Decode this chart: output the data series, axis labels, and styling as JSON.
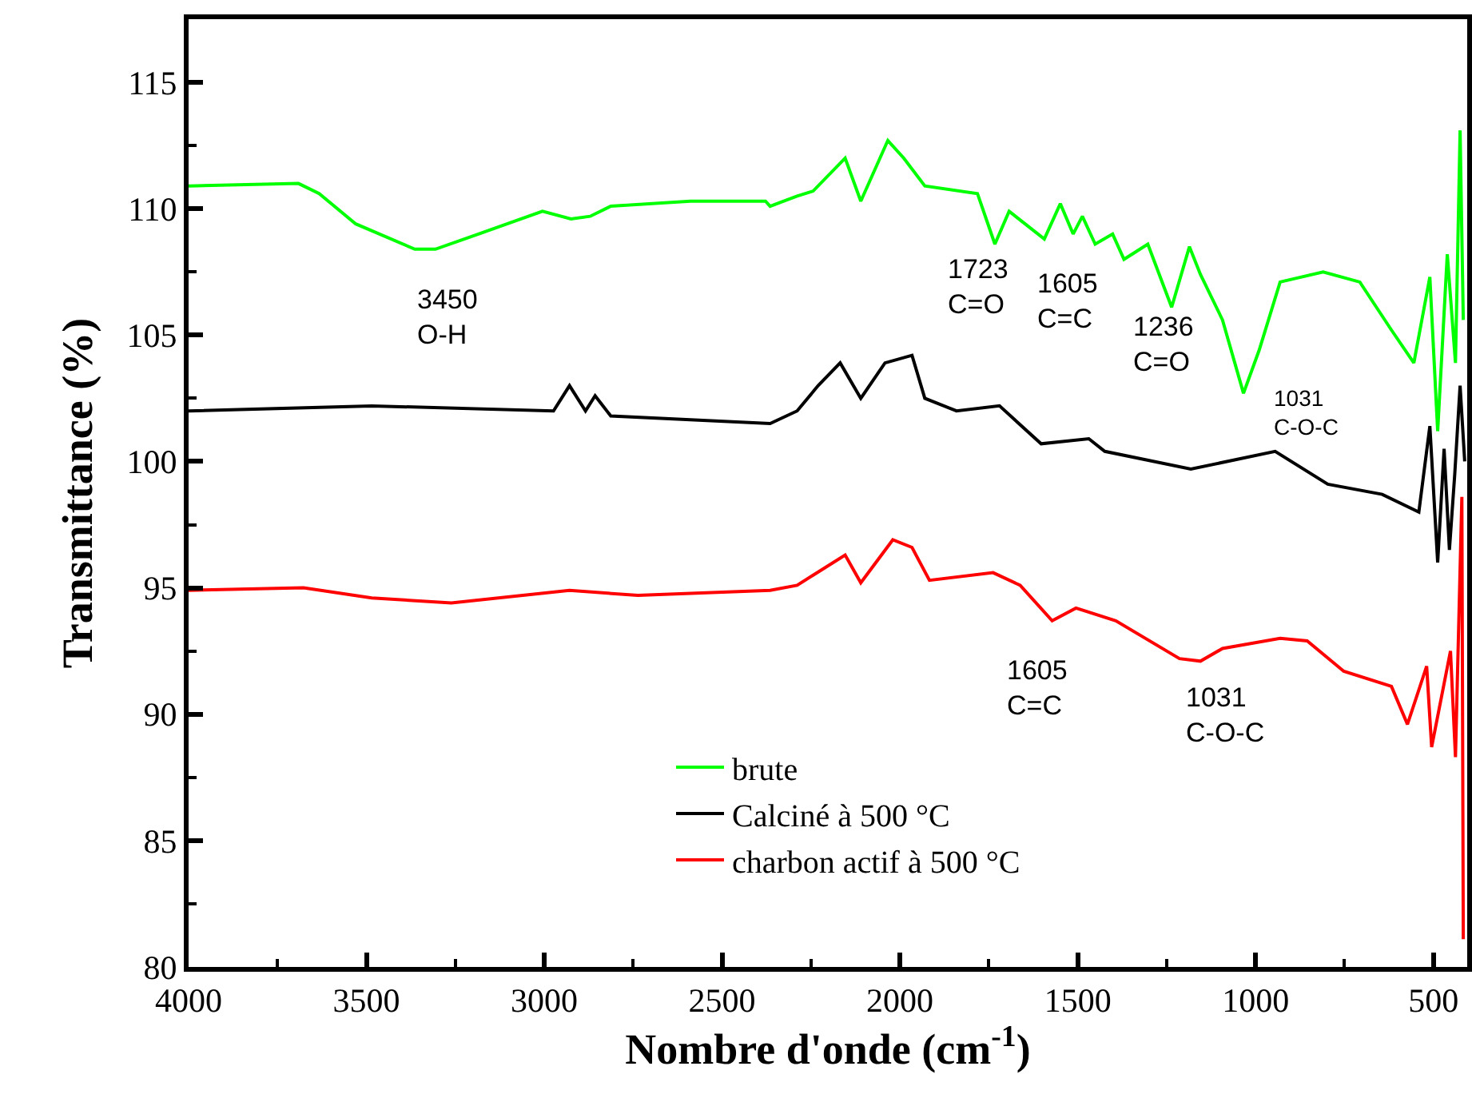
{
  "chart_data": {
    "type": "line",
    "xlabel": "Nombre d'onde (cm$^{-1}$)",
    "ylabel": "Transmittance (%)",
    "xlim": [
      4000,
      405
    ],
    "xticks": [
      4000,
      3500,
      3000,
      2500,
      2000,
      1500,
      1000,
      500
    ],
    "ylim": [
      80,
      117.5
    ],
    "yticks": [
      80,
      85,
      90,
      95,
      100,
      105,
      110,
      115
    ],
    "grid": false,
    "legend": "bottom",
    "marker": "none",
    "line_style": "solid",
    "series": [
      {
        "name": "brute",
        "color": "#00ff00",
        "x": [
          4000,
          3691,
          3633,
          3530,
          3364,
          3306,
          3185,
          3005,
          2925,
          2871,
          2813,
          2589,
          2378,
          2365,
          2289,
          2244,
          2154,
          2110,
          2034,
          1989,
          1930,
          1782,
          1733,
          1693,
          1594,
          1549,
          1513,
          1487,
          1451,
          1402,
          1370,
          1303,
          1236,
          1186,
          1155,
          1093,
          1034,
          990,
          931,
          810,
          707,
          618,
          555,
          510,
          488,
          461,
          438,
          425,
          416
        ],
        "values": [
          110.9,
          111.0,
          110.6,
          109.4,
          108.4,
          108.4,
          109.0,
          109.9,
          109.6,
          109.7,
          110.1,
          110.3,
          110.3,
          110.1,
          110.5,
          110.7,
          112.0,
          110.3,
          112.7,
          112.0,
          110.9,
          110.6,
          108.6,
          109.9,
          108.8,
          110.2,
          109.0,
          109.7,
          108.6,
          109.0,
          108.0,
          108.6,
          106.1,
          108.5,
          107.4,
          105.6,
          102.7,
          104.4,
          107.1,
          107.5,
          107.1,
          105.2,
          103.9,
          107.3,
          101.2,
          108.2,
          103.9,
          113.1,
          105.6
        ]
      },
      {
        "name": "Calciné à 500 °C",
        "color": "#000000",
        "x": [
          4000,
          3485,
          2974,
          2929,
          2884,
          2857,
          2813,
          2365,
          2289,
          2230,
          2168,
          2110,
          2042,
          1966,
          1930,
          1841,
          1720,
          1603,
          1469,
          1424,
          1182,
          945,
          797,
          644,
          541,
          510,
          488,
          470,
          455,
          440,
          425,
          412
        ],
        "values": [
          102.0,
          102.2,
          102.0,
          103.0,
          102.0,
          102.6,
          101.8,
          101.5,
          102.0,
          103.0,
          103.9,
          102.5,
          103.9,
          104.2,
          102.5,
          102.0,
          102.2,
          100.7,
          100.9,
          100.4,
          99.7,
          100.4,
          99.1,
          98.7,
          98.0,
          101.4,
          96.0,
          100.5,
          96.5,
          99.5,
          103.0,
          100.0
        ]
      },
      {
        "name": "charbon actif à 500 °C",
        "color": "#ff0000",
        "x": [
          4000,
          3677,
          3485,
          3261,
          2929,
          2737,
          2365,
          2289,
          2244,
          2154,
          2110,
          2020,
          1966,
          1917,
          1738,
          1662,
          1572,
          1505,
          1393,
          1214,
          1155,
          1093,
          931,
          855,
          752,
          618,
          573,
          519,
          505,
          452,
          438,
          420,
          416
        ],
        "values": [
          94.9,
          95.0,
          94.6,
          94.4,
          94.9,
          94.7,
          94.9,
          95.1,
          95.5,
          96.3,
          95.2,
          96.9,
          96.6,
          95.3,
          95.6,
          95.1,
          93.7,
          94.2,
          93.7,
          92.2,
          92.1,
          92.6,
          93.0,
          92.9,
          91.7,
          91.1,
          89.6,
          91.9,
          88.7,
          92.5,
          88.3,
          98.6,
          81.1
        ]
      }
    ],
    "annotations": [
      "3450\nO-H",
      "1723\nC=O",
      "1605\nC=C",
      "1236\nC=O",
      "1031\nC-O-C",
      "1605\nC=C",
      "1031\nC-O-C"
    ]
  }
}
